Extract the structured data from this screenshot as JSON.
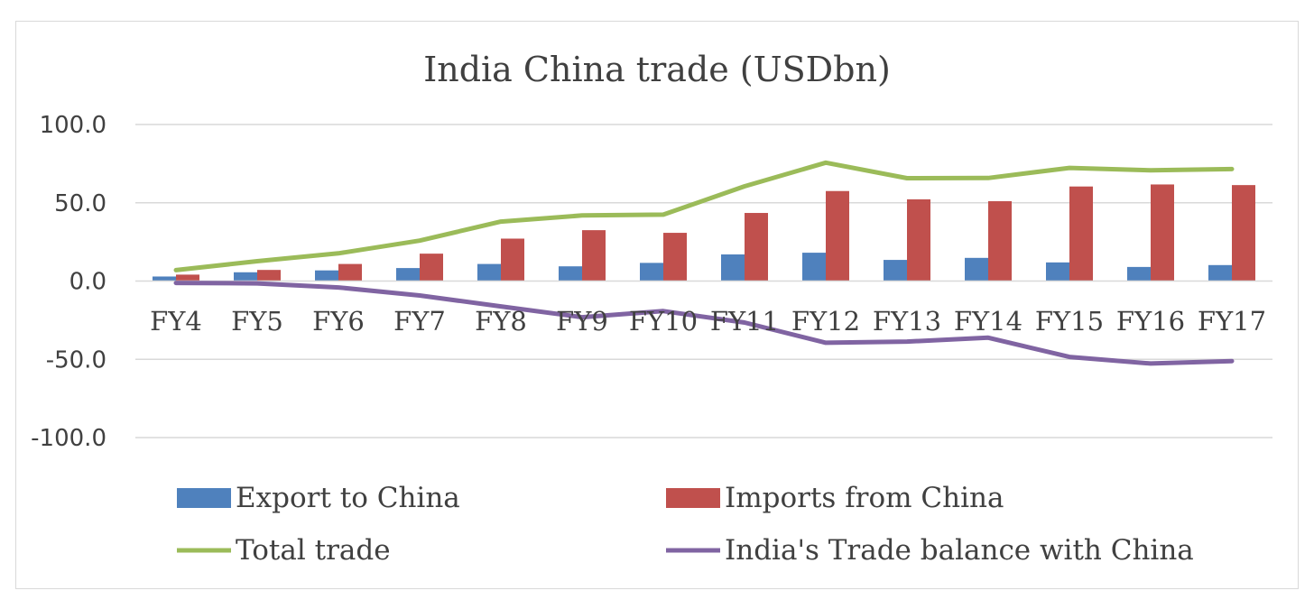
{
  "chart_data": {
    "type": "bar",
    "title": "India China trade (USDbn)",
    "categories": [
      "FY4",
      "FY5",
      "FY6",
      "FY7",
      "FY8",
      "FY9",
      "FY10",
      "FY11",
      "FY12",
      "FY13",
      "FY14",
      "FY15",
      "FY16",
      "FY17"
    ],
    "y_ticks": [
      "100.0",
      "50.0",
      "0.0",
      "-50.0",
      "-100.0"
    ],
    "ylim": [
      -100,
      100
    ],
    "grid": true,
    "legend_position": "bottom",
    "series": [
      {
        "name": "Export to China",
        "type": "bar",
        "color": "#4f81bd",
        "values": [
          2.9,
          5.6,
          6.8,
          8.3,
          10.9,
          9.4,
          11.6,
          17.0,
          18.1,
          13.5,
          14.8,
          11.9,
          9.0,
          10.2
        ]
      },
      {
        "name": "Imports from China",
        "type": "bar",
        "color": "#c0504d",
        "values": [
          4.1,
          7.1,
          10.9,
          17.5,
          27.1,
          32.5,
          30.8,
          43.5,
          57.5,
          52.2,
          51.0,
          60.4,
          61.7,
          61.3
        ]
      },
      {
        "name": "Total trade",
        "type": "line",
        "color": "#9bbb59",
        "values": [
          7.0,
          12.7,
          17.7,
          25.8,
          38.0,
          41.9,
          42.4,
          60.5,
          75.6,
          65.7,
          65.8,
          72.3,
          70.7,
          71.5
        ]
      },
      {
        "name": "India's Trade balance with China",
        "type": "line",
        "color": "#8064a2",
        "values": [
          -1.2,
          -1.5,
          -4.1,
          -9.2,
          -16.2,
          -23.1,
          -19.2,
          -26.5,
          -39.4,
          -38.7,
          -36.2,
          -48.5,
          -52.7,
          -51.1
        ]
      }
    ]
  }
}
